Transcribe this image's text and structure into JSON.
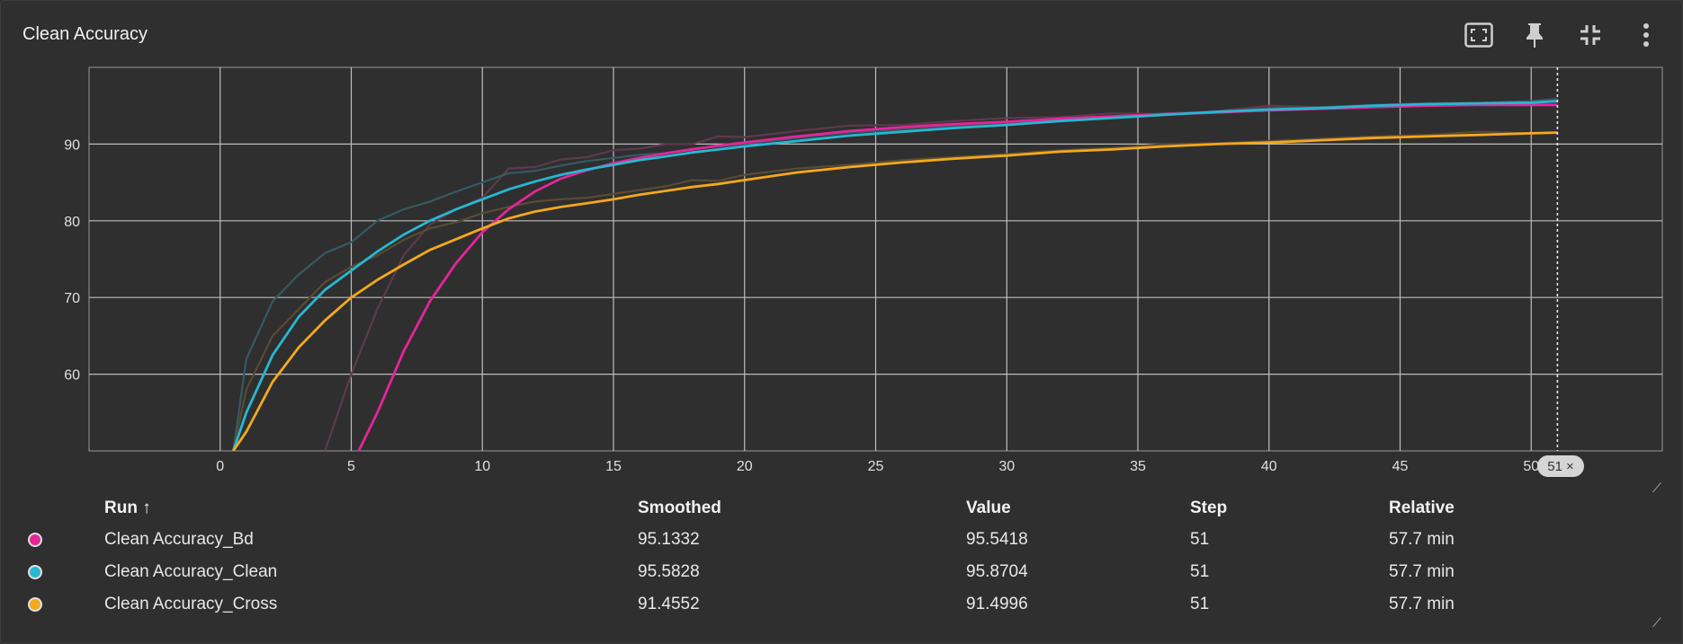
{
  "card": {
    "title": "Clean Accuracy",
    "icons": [
      "fit-to-screen-icon",
      "pin-icon",
      "collapse-icon",
      "more-vert-icon"
    ]
  },
  "step_badge": {
    "value": "51",
    "close_glyph": "×"
  },
  "table": {
    "headers": {
      "run": "Run ↑",
      "smoothed": "Smoothed",
      "value": "Value",
      "step": "Step",
      "relative": "Relative"
    },
    "rows": [
      {
        "color": "#e5259a",
        "run": "Clean Accuracy_Bd",
        "smoothed": "95.1332",
        "value": "95.5418",
        "step": "51",
        "relative": "57.7 min"
      },
      {
        "color": "#27b7d1",
        "run": "Clean Accuracy_Clean",
        "smoothed": "95.5828",
        "value": "95.8704",
        "step": "51",
        "relative": "57.7 min"
      },
      {
        "color": "#f5a81c",
        "run": "Clean Accuracy_Cross",
        "smoothed": "91.4552",
        "value": "91.4996",
        "step": "51",
        "relative": "57.7 min"
      }
    ]
  },
  "chart_data": {
    "type": "line",
    "xlim": [
      -5,
      55
    ],
    "ylim": [
      50,
      100
    ],
    "xticks": [
      0,
      5,
      10,
      15,
      20,
      25,
      30,
      35,
      40,
      45,
      50
    ],
    "yticks": [
      60,
      70,
      80,
      90
    ],
    "grid": true,
    "hover_step": 51,
    "series": [
      {
        "name": "Clean Accuracy_Bd",
        "color": "#e5259a",
        "raw_color": "#5e3a4c",
        "x": [
          4,
          5,
          6,
          7,
          8,
          9,
          10,
          11,
          12,
          13,
          14,
          15,
          16,
          17,
          18,
          19,
          20,
          22,
          24,
          26,
          28,
          30,
          32,
          34,
          36,
          38,
          40,
          42,
          44,
          46,
          48,
          50,
          51
        ],
        "smoothed": [
          40,
          48,
          55,
          63,
          69.5,
          74.5,
          78.5,
          81.5,
          83.8,
          85.5,
          86.6,
          87.5,
          88.2,
          88.8,
          89.3,
          89.8,
          90.2,
          91,
          91.7,
          92.2,
          92.6,
          92.9,
          93.3,
          93.6,
          93.9,
          94.1,
          94.4,
          94.6,
          94.8,
          95,
          95.1,
          95.1,
          95.1
        ],
        "raw": [
          50,
          60,
          68.5,
          75.5,
          79.5,
          81.5,
          83,
          86.8,
          87,
          88,
          88.3,
          89.2,
          89.4,
          90,
          90,
          91,
          90.9,
          91.7,
          92.4,
          92.5,
          93,
          93.4,
          93.5,
          94,
          93.9,
          94.3,
          95,
          94.8,
          95,
          95.2,
          95.3,
          95.5,
          95.5
        ]
      },
      {
        "name": "Clean Accuracy_Clean",
        "color": "#27b7d1",
        "raw_color": "#365a63",
        "x": [
          0.5,
          1,
          2,
          3,
          4,
          5,
          6,
          7,
          8,
          9,
          10,
          11,
          12,
          13,
          14,
          15,
          16,
          17,
          18,
          19,
          20,
          22,
          24,
          26,
          28,
          30,
          32,
          34,
          36,
          38,
          40,
          42,
          44,
          46,
          48,
          50,
          51
        ],
        "smoothed": [
          50,
          55,
          62.5,
          67.5,
          71,
          73.5,
          76,
          78.2,
          80,
          81.5,
          82.8,
          84.1,
          85.1,
          86,
          86.7,
          87.3,
          87.9,
          88.4,
          88.9,
          89.3,
          89.7,
          90.4,
          91.1,
          91.6,
          92.1,
          92.5,
          93,
          93.4,
          93.8,
          94.2,
          94.5,
          94.7,
          95,
          95.2,
          95.3,
          95.4,
          95.6
        ],
        "raw": [
          50,
          62,
          69.5,
          73,
          75.8,
          77.2,
          80,
          81.5,
          82.5,
          83.8,
          85,
          86.2,
          86.5,
          87.2,
          87.8,
          88.2,
          88.6,
          88.8,
          89.4,
          89.7,
          90,
          90.8,
          91.5,
          91.9,
          92.4,
          92.8,
          93.2,
          93.5,
          94,
          94.2,
          94.7,
          94.8,
          95.1,
          95.3,
          95.4,
          95.6,
          95.9
        ]
      },
      {
        "name": "Clean Accuracy_Cross",
        "color": "#f5a81c",
        "raw_color": "#594b35",
        "x": [
          0.5,
          1,
          2,
          3,
          4,
          5,
          6,
          7,
          8,
          9,
          10,
          11,
          12,
          13,
          14,
          15,
          16,
          17,
          18,
          19,
          20,
          22,
          24,
          26,
          28,
          30,
          32,
          34,
          36,
          38,
          40,
          42,
          44,
          46,
          48,
          50,
          51
        ],
        "smoothed": [
          50,
          52.5,
          59,
          63.5,
          67,
          70,
          72.3,
          74.3,
          76.2,
          77.6,
          79,
          80.3,
          81.2,
          81.8,
          82.3,
          82.8,
          83.4,
          83.9,
          84.4,
          84.8,
          85.3,
          86.3,
          87,
          87.6,
          88.1,
          88.5,
          89,
          89.3,
          89.7,
          90,
          90.2,
          90.5,
          90.8,
          91,
          91.2,
          91.4,
          91.5
        ],
        "raw": [
          50,
          58,
          65,
          68.5,
          72,
          74,
          75.5,
          77.5,
          79,
          79.8,
          81,
          81.8,
          82.5,
          82.8,
          83,
          83.5,
          84,
          84.5,
          85.3,
          85.2,
          86,
          86.8,
          87.3,
          87.9,
          88.3,
          88.7,
          89.2,
          89.5,
          90,
          90.1,
          90.4,
          90.7,
          91,
          91.2,
          91.6,
          91.4,
          91.5
        ]
      }
    ]
  }
}
